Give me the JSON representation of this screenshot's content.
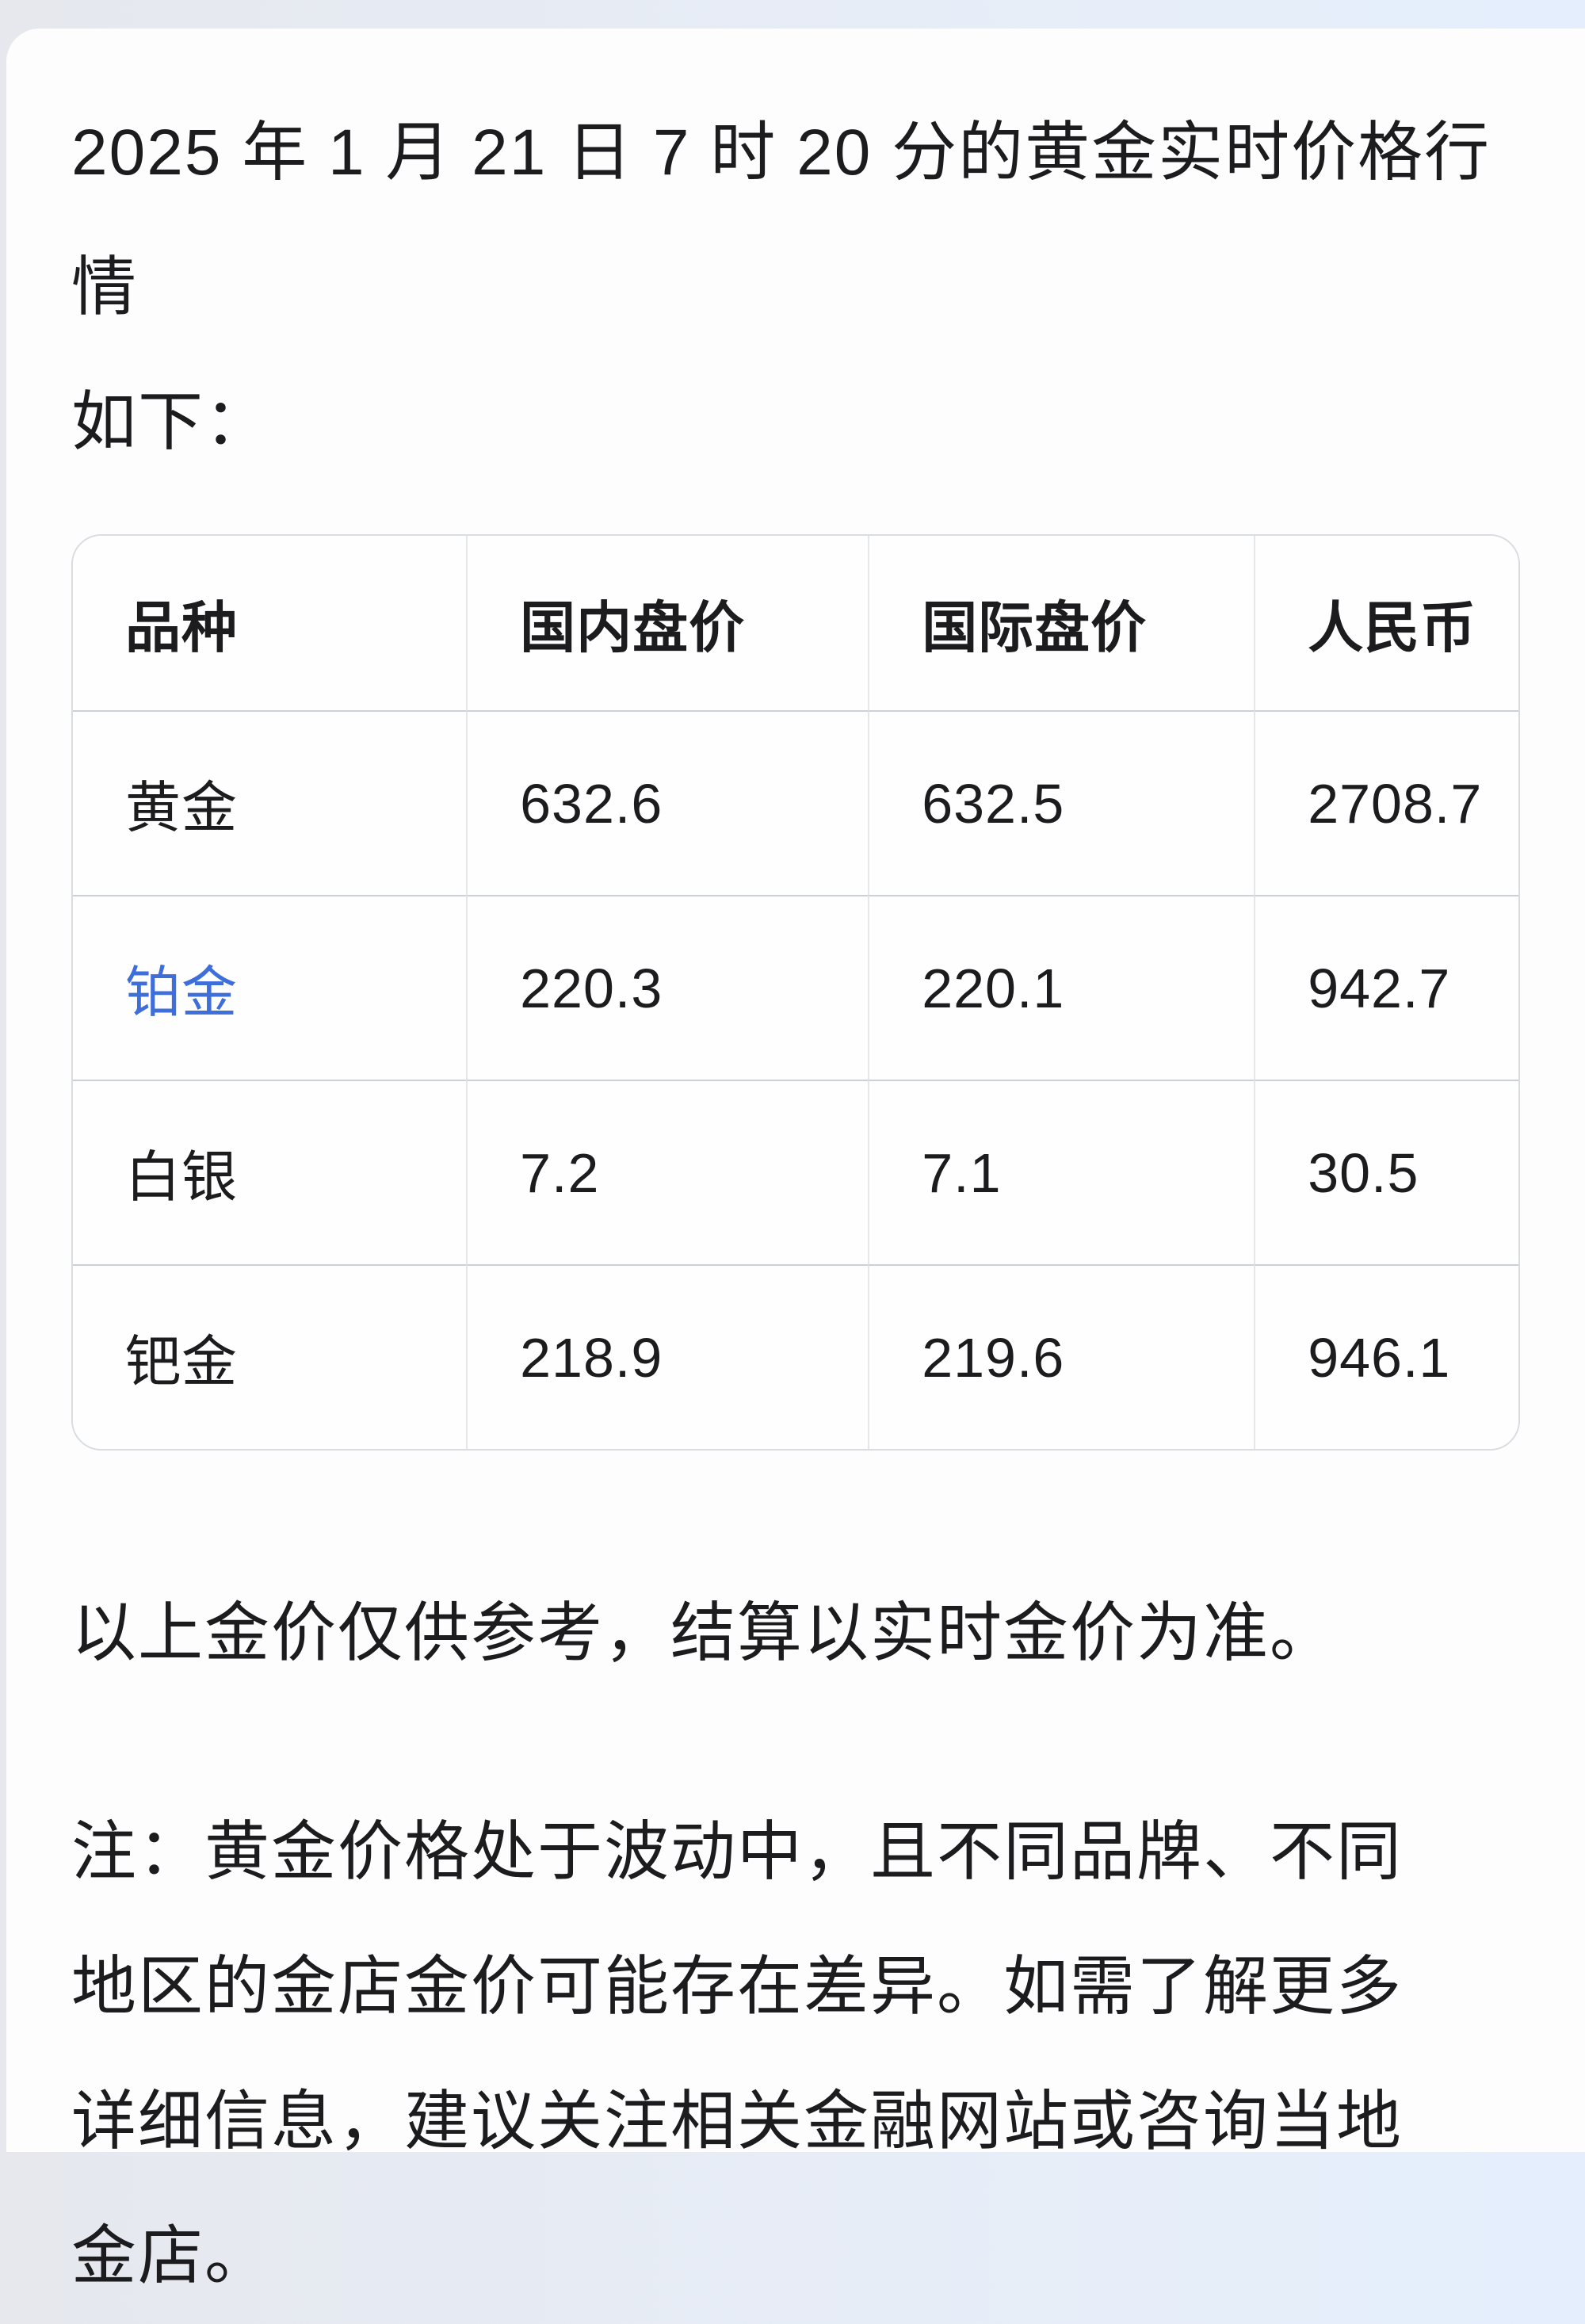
{
  "intro": {
    "lines": [
      "2025 年 1 月 21 日 7 时 20 分的黄金实时价格行情",
      "如下："
    ]
  },
  "table": {
    "headers": [
      "品种",
      "国内盘价",
      "国际盘价",
      "人民币"
    ],
    "rows": [
      {
        "name": "黄金",
        "domestic": "632.6",
        "international": "632.5",
        "rmb": "2708.7"
      },
      {
        "name": "铂金",
        "domestic": "220.3",
        "international": "220.1",
        "rmb": "942.7"
      },
      {
        "name": "白银",
        "domestic": "7.2",
        "international": "7.1",
        "rmb": "30.5"
      },
      {
        "name": "钯金",
        "domestic": "218.9",
        "international": "219.6",
        "rmb": "946.1"
      }
    ]
  },
  "disclaimer": "以上金价仅供参考，结算以实时金价为准。",
  "note": {
    "lines": [
      "注：黄金价格处于波动中，且不同品牌、不同",
      "地区的金店金价可能存在差异。如需了解更多",
      "详细信息，建议关注相关金融网站或咨询当地",
      "金店。"
    ]
  },
  "colors": {
    "link_blue": "#3e6ed9",
    "text": "#1c1c1e",
    "table_border": "#d9dce1",
    "row_border": "#ccd1d7"
  }
}
